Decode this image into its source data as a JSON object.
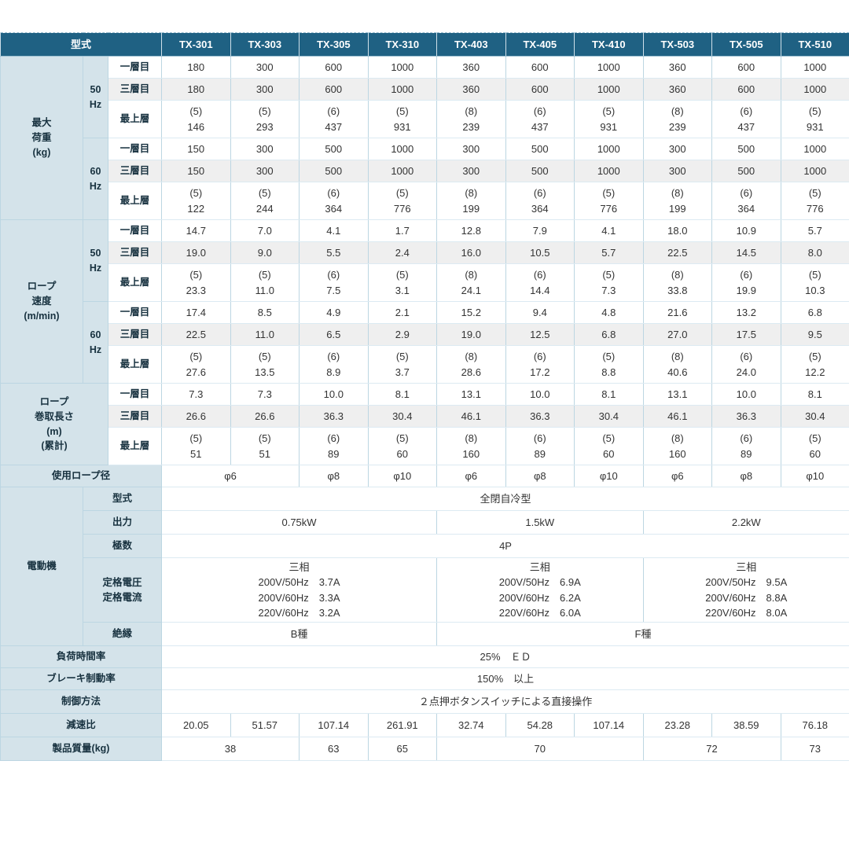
{
  "table": {
    "header": {
      "label": "型式",
      "models": [
        "TX-301",
        "TX-303",
        "TX-305",
        "TX-310",
        "TX-403",
        "TX-405",
        "TX-410",
        "TX-503",
        "TX-505",
        "TX-510"
      ]
    },
    "rows": [
      {
        "cls": "sep",
        "cells": [
          [
            "g",
            "最大\n荷重\n(kg)",
            1,
            6
          ],
          [
            "h",
            "50\nHz",
            1,
            3
          ],
          [
            "l",
            "一層目",
            1,
            1
          ],
          [
            "d",
            "180"
          ],
          [
            "d",
            "300"
          ],
          [
            "d",
            "600"
          ],
          [
            "d",
            "1000"
          ],
          [
            "d",
            "360"
          ],
          [
            "d",
            "600"
          ],
          [
            "d",
            "1000"
          ],
          [
            "d",
            "360"
          ],
          [
            "d",
            "600"
          ],
          [
            "d",
            "1000"
          ]
        ]
      },
      {
        "cls": "stripe",
        "cells": [
          [
            "l",
            "三層目",
            1,
            1
          ],
          [
            "d",
            "180"
          ],
          [
            "d",
            "300"
          ],
          [
            "d",
            "600"
          ],
          [
            "d",
            "1000"
          ],
          [
            "d",
            "360"
          ],
          [
            "d",
            "600"
          ],
          [
            "d",
            "1000"
          ],
          [
            "d",
            "360"
          ],
          [
            "d",
            "600"
          ],
          [
            "d",
            "1000"
          ]
        ]
      },
      {
        "cls": "tall",
        "cells": [
          [
            "l",
            "最上層",
            1,
            1
          ],
          [
            "d",
            "(5)\n146"
          ],
          [
            "d",
            "(5)\n293"
          ],
          [
            "d",
            "(6)\n437"
          ],
          [
            "d",
            "(5)\n931"
          ],
          [
            "d",
            "(8)\n239"
          ],
          [
            "d",
            "(6)\n437"
          ],
          [
            "d",
            "(5)\n931"
          ],
          [
            "d",
            "(8)\n239"
          ],
          [
            "d",
            "(6)\n437"
          ],
          [
            "d",
            "(5)\n931"
          ]
        ]
      },
      {
        "cls": "sep",
        "cells": [
          [
            "h",
            "60\nHz",
            1,
            3
          ],
          [
            "l",
            "一層目",
            1,
            1
          ],
          [
            "d",
            "150"
          ],
          [
            "d",
            "300"
          ],
          [
            "d",
            "500"
          ],
          [
            "d",
            "1000"
          ],
          [
            "d",
            "300"
          ],
          [
            "d",
            "500"
          ],
          [
            "d",
            "1000"
          ],
          [
            "d",
            "300"
          ],
          [
            "d",
            "500"
          ],
          [
            "d",
            "1000"
          ]
        ]
      },
      {
        "cls": "stripe",
        "cells": [
          [
            "l",
            "三層目",
            1,
            1
          ],
          [
            "d",
            "150"
          ],
          [
            "d",
            "300"
          ],
          [
            "d",
            "500"
          ],
          [
            "d",
            "1000"
          ],
          [
            "d",
            "300"
          ],
          [
            "d",
            "500"
          ],
          [
            "d",
            "1000"
          ],
          [
            "d",
            "300"
          ],
          [
            "d",
            "500"
          ],
          [
            "d",
            "1000"
          ]
        ]
      },
      {
        "cls": "tall",
        "cells": [
          [
            "l",
            "最上層",
            1,
            1
          ],
          [
            "d",
            "(5)\n122"
          ],
          [
            "d",
            "(5)\n244"
          ],
          [
            "d",
            "(6)\n364"
          ],
          [
            "d",
            "(5)\n776"
          ],
          [
            "d",
            "(8)\n199"
          ],
          [
            "d",
            "(6)\n364"
          ],
          [
            "d",
            "(5)\n776"
          ],
          [
            "d",
            "(8)\n199"
          ],
          [
            "d",
            "(6)\n364"
          ],
          [
            "d",
            "(5)\n776"
          ]
        ]
      },
      {
        "cls": "sep",
        "cells": [
          [
            "g",
            "ロープ\n速度\n(m/min)",
            1,
            6
          ],
          [
            "h",
            "50\nHz",
            1,
            3
          ],
          [
            "l",
            "一層目",
            1,
            1
          ],
          [
            "d",
            "14.7"
          ],
          [
            "d",
            "7.0"
          ],
          [
            "d",
            "4.1"
          ],
          [
            "d",
            "1.7"
          ],
          [
            "d",
            "12.8"
          ],
          [
            "d",
            "7.9"
          ],
          [
            "d",
            "4.1"
          ],
          [
            "d",
            "18.0"
          ],
          [
            "d",
            "10.9"
          ],
          [
            "d",
            "5.7"
          ]
        ]
      },
      {
        "cls": "stripe",
        "cells": [
          [
            "l",
            "三層目",
            1,
            1
          ],
          [
            "d",
            "19.0"
          ],
          [
            "d",
            "9.0"
          ],
          [
            "d",
            "5.5"
          ],
          [
            "d",
            "2.4"
          ],
          [
            "d",
            "16.0"
          ],
          [
            "d",
            "10.5"
          ],
          [
            "d",
            "5.7"
          ],
          [
            "d",
            "22.5"
          ],
          [
            "d",
            "14.5"
          ],
          [
            "d",
            "8.0"
          ]
        ]
      },
      {
        "cls": "tall",
        "cells": [
          [
            "l",
            "最上層",
            1,
            1
          ],
          [
            "d",
            "(5)\n23.3"
          ],
          [
            "d",
            "(5)\n11.0"
          ],
          [
            "d",
            "(6)\n7.5"
          ],
          [
            "d",
            "(5)\n3.1"
          ],
          [
            "d",
            "(8)\n24.1"
          ],
          [
            "d",
            "(6)\n14.4"
          ],
          [
            "d",
            "(5)\n7.3"
          ],
          [
            "d",
            "(8)\n33.8"
          ],
          [
            "d",
            "(6)\n19.9"
          ],
          [
            "d",
            "(5)\n10.3"
          ]
        ]
      },
      {
        "cls": "sep",
        "cells": [
          [
            "h",
            "60\nHz",
            1,
            3
          ],
          [
            "l",
            "一層目",
            1,
            1
          ],
          [
            "d",
            "17.4"
          ],
          [
            "d",
            "8.5"
          ],
          [
            "d",
            "4.9"
          ],
          [
            "d",
            "2.1"
          ],
          [
            "d",
            "15.2"
          ],
          [
            "d",
            "9.4"
          ],
          [
            "d",
            "4.8"
          ],
          [
            "d",
            "21.6"
          ],
          [
            "d",
            "13.2"
          ],
          [
            "d",
            "6.8"
          ]
        ]
      },
      {
        "cls": "stripe",
        "cells": [
          [
            "l",
            "三層目",
            1,
            1
          ],
          [
            "d",
            "22.5"
          ],
          [
            "d",
            "11.0"
          ],
          [
            "d",
            "6.5"
          ],
          [
            "d",
            "2.9"
          ],
          [
            "d",
            "19.0"
          ],
          [
            "d",
            "12.5"
          ],
          [
            "d",
            "6.8"
          ],
          [
            "d",
            "27.0"
          ],
          [
            "d",
            "17.5"
          ],
          [
            "d",
            "9.5"
          ]
        ]
      },
      {
        "cls": "tall",
        "cells": [
          [
            "l",
            "最上層",
            1,
            1
          ],
          [
            "d",
            "(5)\n27.6"
          ],
          [
            "d",
            "(5)\n13.5"
          ],
          [
            "d",
            "(6)\n8.9"
          ],
          [
            "d",
            "(5)\n3.7"
          ],
          [
            "d",
            "(8)\n28.6"
          ],
          [
            "d",
            "(6)\n17.2"
          ],
          [
            "d",
            "(5)\n8.8"
          ],
          [
            "d",
            "(8)\n40.6"
          ],
          [
            "d",
            "(6)\n24.0"
          ],
          [
            "d",
            "(5)\n12.2"
          ]
        ]
      },
      {
        "cls": "sep",
        "cells": [
          [
            "g",
            "ロープ\n巻取長さ\n(m)\n(累計)",
            2,
            3
          ],
          [
            "l",
            "一層目",
            1,
            1
          ],
          [
            "d",
            "7.3"
          ],
          [
            "d",
            "7.3"
          ],
          [
            "d",
            "10.0"
          ],
          [
            "d",
            "8.1"
          ],
          [
            "d",
            "13.1"
          ],
          [
            "d",
            "10.0"
          ],
          [
            "d",
            "8.1"
          ],
          [
            "d",
            "13.1"
          ],
          [
            "d",
            "10.0"
          ],
          [
            "d",
            "8.1"
          ]
        ]
      },
      {
        "cls": "stripe",
        "cells": [
          [
            "l",
            "三層目",
            1,
            1
          ],
          [
            "d",
            "26.6"
          ],
          [
            "d",
            "26.6"
          ],
          [
            "d",
            "36.3"
          ],
          [
            "d",
            "30.4"
          ],
          [
            "d",
            "46.1"
          ],
          [
            "d",
            "36.3"
          ],
          [
            "d",
            "30.4"
          ],
          [
            "d",
            "46.1"
          ],
          [
            "d",
            "36.3"
          ],
          [
            "d",
            "30.4"
          ]
        ]
      },
      {
        "cls": "tall",
        "cells": [
          [
            "l",
            "最上層",
            1,
            1
          ],
          [
            "d",
            "(5)\n51"
          ],
          [
            "d",
            "(5)\n51"
          ],
          [
            "d",
            "(6)\n89"
          ],
          [
            "d",
            "(5)\n60"
          ],
          [
            "d",
            "(8)\n160"
          ],
          [
            "d",
            "(6)\n89"
          ],
          [
            "d",
            "(5)\n60"
          ],
          [
            "d",
            "(8)\n160"
          ],
          [
            "d",
            "(6)\n89"
          ],
          [
            "d",
            "(5)\n60"
          ]
        ]
      },
      {
        "cls": "sep",
        "cells": [
          [
            "g",
            "使用ロープ径",
            3,
            1
          ],
          [
            "d",
            "φ6",
            2,
            1
          ],
          [
            "d",
            "φ8"
          ],
          [
            "d",
            "φ10"
          ],
          [
            "d",
            "φ6"
          ],
          [
            "d",
            "φ8"
          ],
          [
            "d",
            "φ10"
          ],
          [
            "d",
            "φ6"
          ],
          [
            "d",
            "φ8"
          ],
          [
            "d",
            "φ10"
          ]
        ]
      },
      {
        "cls": "m sep",
        "cells": [
          [
            "g",
            "電動機",
            1,
            5
          ],
          [
            "g",
            "型式",
            2,
            1
          ],
          [
            "d",
            "全閉自冷型",
            10,
            1
          ]
        ]
      },
      {
        "cls": "m",
        "cells": [
          [
            "g",
            "出力",
            2,
            1
          ],
          [
            "d",
            "0.75kW",
            4,
            1
          ],
          [
            "d",
            "1.5kW",
            3,
            1
          ],
          [
            "d",
            "2.2kW",
            3,
            1
          ]
        ]
      },
      {
        "cls": "m",
        "cells": [
          [
            "g",
            "極数",
            2,
            1
          ],
          [
            "d",
            "4P",
            10,
            1
          ]
        ]
      },
      {
        "cls": "volt",
        "cells": [
          [
            "g",
            "定格電圧\n定格電流",
            2,
            1
          ],
          [
            "d",
            "三相\n200V/50Hz　3.7A\n200V/60Hz　3.3A\n220V/60Hz　3.2A",
            4,
            1
          ],
          [
            "d",
            "三相\n200V/50Hz　6.9A\n200V/60Hz　6.2A\n220V/60Hz　6.0A",
            3,
            1
          ],
          [
            "d",
            "三相\n200V/50Hz　9.5A\n200V/60Hz　8.8A\n220V/60Hz　8.0A",
            3,
            1
          ]
        ]
      },
      {
        "cls": "m",
        "cells": [
          [
            "g",
            "絶縁",
            2,
            1
          ],
          [
            "d",
            "B種",
            4,
            1
          ],
          [
            "d",
            "F種",
            6,
            1
          ]
        ]
      },
      {
        "cls": "sep",
        "cells": [
          [
            "g",
            "負荷時間率",
            3,
            1
          ],
          [
            "d",
            "25%　ＥＤ",
            10,
            1
          ]
        ]
      },
      {
        "cls": "sep",
        "cells": [
          [
            "g",
            "ブレーキ制動率",
            3,
            1
          ],
          [
            "d",
            "150%　以上",
            10,
            1
          ]
        ]
      },
      {
        "cls": "m sep",
        "cells": [
          [
            "g",
            "制御方法",
            3,
            1
          ],
          [
            "d",
            "２点押ボタンスイッチによる直接操作",
            10,
            1
          ]
        ]
      },
      {
        "cls": "m sep",
        "cells": [
          [
            "g",
            "減速比",
            3,
            1
          ],
          [
            "d",
            "20.05"
          ],
          [
            "d",
            "51.57"
          ],
          [
            "d",
            "107.14"
          ],
          [
            "d",
            "261.91"
          ],
          [
            "d",
            "32.74"
          ],
          [
            "d",
            "54.28"
          ],
          [
            "d",
            "107.14"
          ],
          [
            "d",
            "23.28"
          ],
          [
            "d",
            "38.59"
          ],
          [
            "d",
            "76.18"
          ]
        ]
      },
      {
        "cls": "m sep",
        "cells": [
          [
            "g",
            "製品質量(kg)",
            3,
            1
          ],
          [
            "d",
            "38",
            2,
            1
          ],
          [
            "d",
            "63"
          ],
          [
            "d",
            "65"
          ],
          [
            "d",
            "70",
            3,
            1
          ],
          [
            "d",
            "72",
            2,
            1
          ],
          [
            "d",
            "73"
          ]
        ]
      }
    ]
  }
}
